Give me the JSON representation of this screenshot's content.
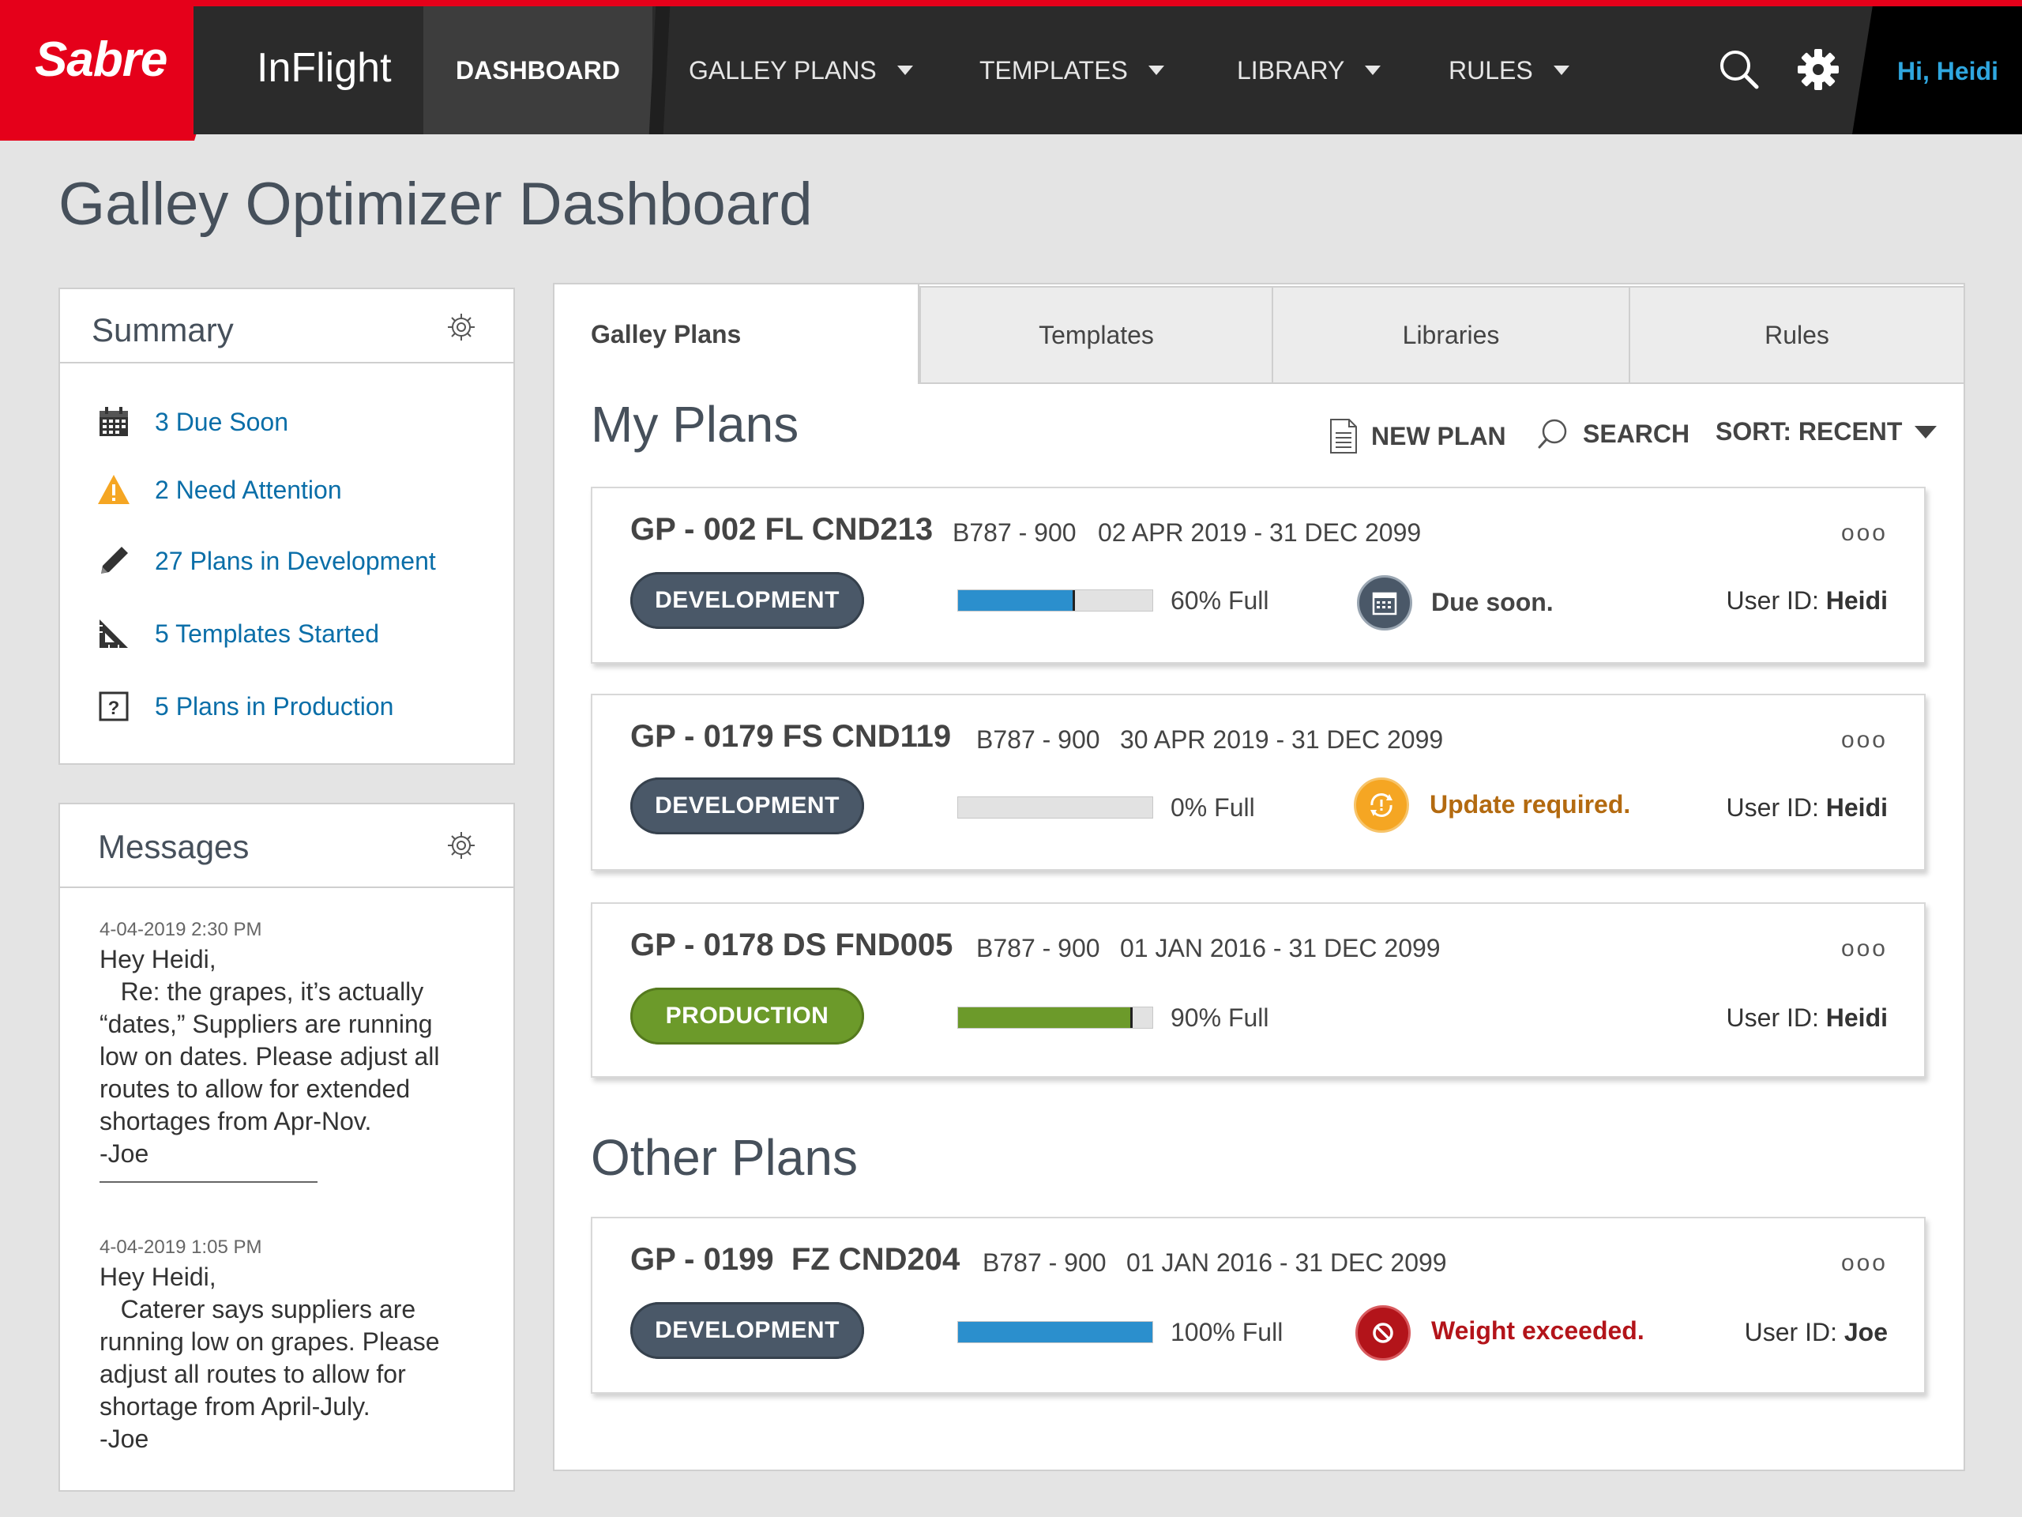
{
  "nav": {
    "logo": "Sabre",
    "product": "InFlight",
    "items": [
      {
        "label": "DASHBOARD",
        "active": true
      },
      {
        "label": "GALLEY PLANS",
        "dropdown": true
      },
      {
        "label": "TEMPLATES",
        "dropdown": true
      },
      {
        "label": "LIBRARY",
        "dropdown": true
      },
      {
        "label": "RULES",
        "dropdown": true
      }
    ],
    "greeting": "Hi, Heidi",
    "search_icon": "search-icon",
    "settings_icon": "gear-icon"
  },
  "page": {
    "title": "Galley Optimizer Dashboard"
  },
  "summary": {
    "title": "Summary",
    "items": [
      {
        "icon": "calendar-icon",
        "label": "3 Due Soon"
      },
      {
        "icon": "warning-icon",
        "label": "2 Need Attention"
      },
      {
        "icon": "pencil-icon",
        "label": "27 Plans in Development"
      },
      {
        "icon": "set-square-icon",
        "label": "5 Templates Started"
      },
      {
        "icon": "question-icon",
        "label": "5 Plans in Production"
      }
    ]
  },
  "messages": {
    "title": "Messages",
    "items": [
      {
        "timestamp": "4-04-2019 2:30 PM",
        "lines": [
          "Hey Heidi,",
          "   Re: the grapes, it’s actually",
          "“dates,” Suppliers are running",
          "low on dates. Please adjust all",
          "routes to allow for extended",
          "shortages from Apr-Nov.",
          "-Joe"
        ]
      },
      {
        "timestamp": "4-04-2019 1:05 PM",
        "lines": [
          "Hey Heidi,",
          "   Caterer says suppliers are",
          "running low on grapes. Please",
          "adjust all routes to allow for",
          "shortage from April-July.",
          "-Joe"
        ]
      }
    ]
  },
  "tabs": [
    "Galley Plans",
    "Templates",
    "Libraries",
    "Rules"
  ],
  "my_plans": {
    "title": "My Plans",
    "actions": {
      "new_plan": "NEW PLAN",
      "search": "SEARCH",
      "sort": "SORT: RECENT"
    },
    "plans": [
      {
        "code": "GP - 002 FL CND213",
        "aircraft": "B787 - 900",
        "dates": "02 APR 2019 - 31 DEC 2099",
        "status": "DEVELOPMENT",
        "fill": 0.6,
        "fill_label": "60% Full",
        "alert": "Due soon.",
        "alert_color": "#444444",
        "user_label": "User ID:",
        "user": "Heidi",
        "more": "ooo"
      },
      {
        "code": "GP - 0179 FS CND119",
        "aircraft": "B787 - 900",
        "dates": "30 APR 2019 - 31 DEC 2099",
        "status": "DEVELOPMENT",
        "fill": 0,
        "fill_label": "0% Full",
        "alert": "Update required.",
        "alert_color": "#b36a10",
        "user_label": "User ID:",
        "user": "Heidi",
        "more": "ooo"
      },
      {
        "code": "GP - 0178 DS FND005",
        "aircraft": "B787 - 900",
        "dates": "01 JAN 2016 - 31 DEC 2099",
        "status": "PRODUCTION",
        "fill": 0.9,
        "fill_label": "90% Full",
        "alert": "",
        "user_label": "User ID:",
        "user": "Heidi",
        "more": "ooo"
      }
    ]
  },
  "other_plans": {
    "title": "Other Plans",
    "plans": [
      {
        "code": "GP - 0199  FZ CND204",
        "aircraft": "B787 - 900",
        "dates": "01 JAN 2016 - 31 DEC 2099",
        "status": "DEVELOPMENT",
        "fill": 1.0,
        "fill_label": "100% Full",
        "alert": "Weight exceeded.",
        "alert_color": "#b3141a",
        "user_label": "User ID:",
        "user": "Joe",
        "more": "ooo"
      }
    ]
  },
  "colors": {
    "brand_red": "#e5001a",
    "link_blue": "#0a6ea8",
    "dev_pill": "#4a5868",
    "prod_pill": "#6c9a2a",
    "bar_blue": "#2b8fcd"
  }
}
